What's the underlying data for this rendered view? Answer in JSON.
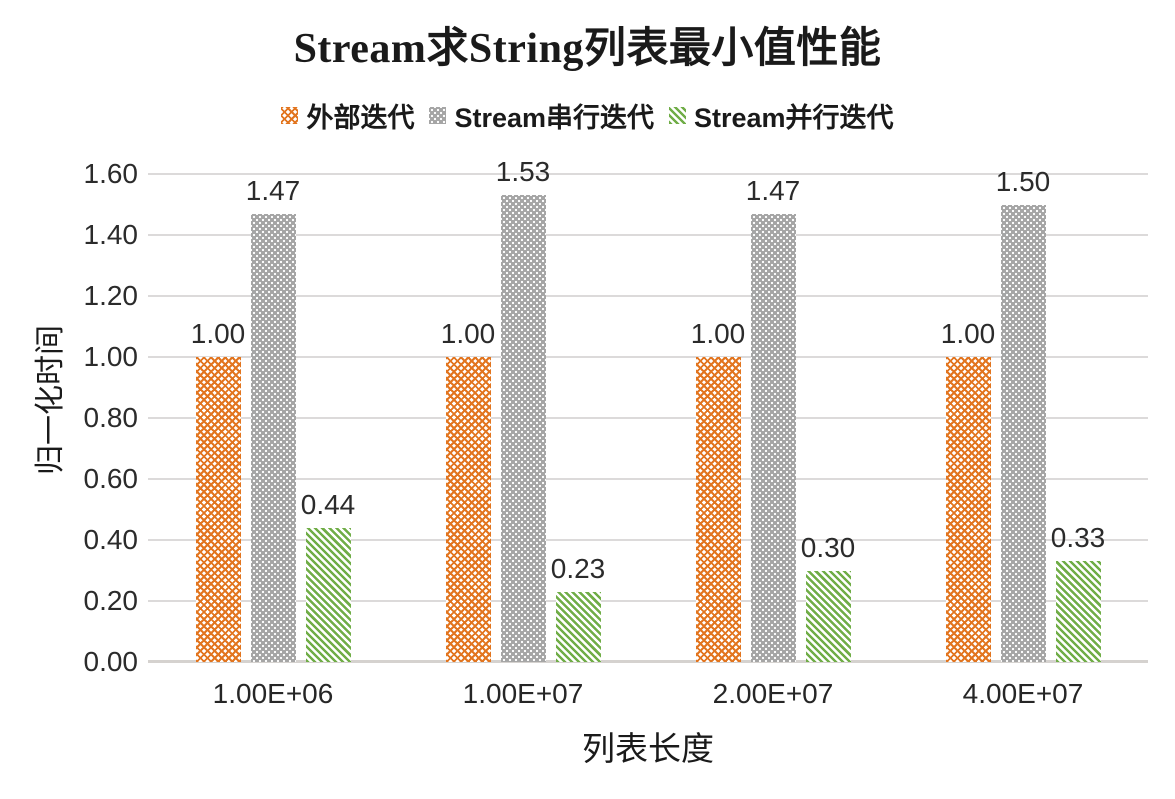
{
  "chart_data": {
    "type": "bar",
    "title": "Stream求String列表最小值性能",
    "xlabel": "列表长度",
    "ylabel": "归一化时间",
    "categories": [
      "1.00E+06",
      "1.00E+07",
      "2.00E+07",
      "4.00E+07"
    ],
    "series": [
      {
        "name": "外部迭代",
        "color": "#E2751F",
        "pattern": "diamond-dots",
        "values": [
          1.0,
          1.0,
          1.0,
          1.0
        ]
      },
      {
        "name": "Stream串行迭代",
        "color": "#A5A5A5",
        "pattern": "white-dots",
        "values": [
          1.47,
          1.53,
          1.47,
          1.5
        ]
      },
      {
        "name": "Stream并行迭代",
        "color": "#70AD47",
        "pattern": "diagonal-stripes",
        "values": [
          0.44,
          0.23,
          0.3,
          0.33
        ]
      }
    ],
    "data_labels": [
      [
        "1.00",
        "1.47",
        "0.44"
      ],
      [
        "1.00",
        "1.53",
        "0.23"
      ],
      [
        "1.00",
        "1.47",
        "0.30"
      ],
      [
        "1.00",
        "1.50",
        "0.33"
      ]
    ],
    "ylim": [
      0.0,
      1.6
    ],
    "ytick_step": 0.2,
    "yticks": [
      "0.00",
      "0.20",
      "0.40",
      "0.60",
      "0.80",
      "1.00",
      "1.20",
      "1.40",
      "1.60"
    ],
    "grid": true,
    "legend_position": "top",
    "background_color": "#ffffff",
    "gridline_color": "#DCDADA"
  }
}
